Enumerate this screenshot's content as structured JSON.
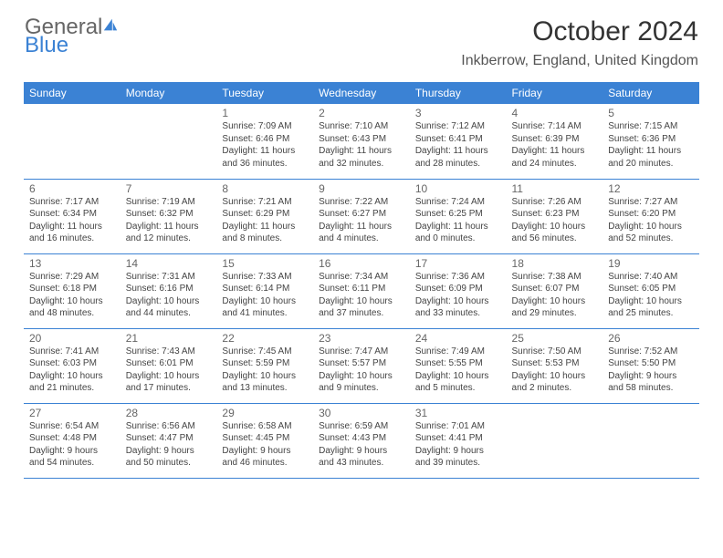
{
  "logo": {
    "part1": "General",
    "part2": "Blue"
  },
  "title": "October 2024",
  "location": "Inkberrow, England, United Kingdom",
  "colors": {
    "accent": "#3b82d4",
    "text": "#444",
    "muted": "#666"
  },
  "day_headers": [
    "Sunday",
    "Monday",
    "Tuesday",
    "Wednesday",
    "Thursday",
    "Friday",
    "Saturday"
  ],
  "weeks": [
    [
      null,
      null,
      {
        "n": "1",
        "sr": "Sunrise: 7:09 AM",
        "ss": "Sunset: 6:46 PM",
        "d1": "Daylight: 11 hours",
        "d2": "and 36 minutes."
      },
      {
        "n": "2",
        "sr": "Sunrise: 7:10 AM",
        "ss": "Sunset: 6:43 PM",
        "d1": "Daylight: 11 hours",
        "d2": "and 32 minutes."
      },
      {
        "n": "3",
        "sr": "Sunrise: 7:12 AM",
        "ss": "Sunset: 6:41 PM",
        "d1": "Daylight: 11 hours",
        "d2": "and 28 minutes."
      },
      {
        "n": "4",
        "sr": "Sunrise: 7:14 AM",
        "ss": "Sunset: 6:39 PM",
        "d1": "Daylight: 11 hours",
        "d2": "and 24 minutes."
      },
      {
        "n": "5",
        "sr": "Sunrise: 7:15 AM",
        "ss": "Sunset: 6:36 PM",
        "d1": "Daylight: 11 hours",
        "d2": "and 20 minutes."
      }
    ],
    [
      {
        "n": "6",
        "sr": "Sunrise: 7:17 AM",
        "ss": "Sunset: 6:34 PM",
        "d1": "Daylight: 11 hours",
        "d2": "and 16 minutes."
      },
      {
        "n": "7",
        "sr": "Sunrise: 7:19 AM",
        "ss": "Sunset: 6:32 PM",
        "d1": "Daylight: 11 hours",
        "d2": "and 12 minutes."
      },
      {
        "n": "8",
        "sr": "Sunrise: 7:21 AM",
        "ss": "Sunset: 6:29 PM",
        "d1": "Daylight: 11 hours",
        "d2": "and 8 minutes."
      },
      {
        "n": "9",
        "sr": "Sunrise: 7:22 AM",
        "ss": "Sunset: 6:27 PM",
        "d1": "Daylight: 11 hours",
        "d2": "and 4 minutes."
      },
      {
        "n": "10",
        "sr": "Sunrise: 7:24 AM",
        "ss": "Sunset: 6:25 PM",
        "d1": "Daylight: 11 hours",
        "d2": "and 0 minutes."
      },
      {
        "n": "11",
        "sr": "Sunrise: 7:26 AM",
        "ss": "Sunset: 6:23 PM",
        "d1": "Daylight: 10 hours",
        "d2": "and 56 minutes."
      },
      {
        "n": "12",
        "sr": "Sunrise: 7:27 AM",
        "ss": "Sunset: 6:20 PM",
        "d1": "Daylight: 10 hours",
        "d2": "and 52 minutes."
      }
    ],
    [
      {
        "n": "13",
        "sr": "Sunrise: 7:29 AM",
        "ss": "Sunset: 6:18 PM",
        "d1": "Daylight: 10 hours",
        "d2": "and 48 minutes."
      },
      {
        "n": "14",
        "sr": "Sunrise: 7:31 AM",
        "ss": "Sunset: 6:16 PM",
        "d1": "Daylight: 10 hours",
        "d2": "and 44 minutes."
      },
      {
        "n": "15",
        "sr": "Sunrise: 7:33 AM",
        "ss": "Sunset: 6:14 PM",
        "d1": "Daylight: 10 hours",
        "d2": "and 41 minutes."
      },
      {
        "n": "16",
        "sr": "Sunrise: 7:34 AM",
        "ss": "Sunset: 6:11 PM",
        "d1": "Daylight: 10 hours",
        "d2": "and 37 minutes."
      },
      {
        "n": "17",
        "sr": "Sunrise: 7:36 AM",
        "ss": "Sunset: 6:09 PM",
        "d1": "Daylight: 10 hours",
        "d2": "and 33 minutes."
      },
      {
        "n": "18",
        "sr": "Sunrise: 7:38 AM",
        "ss": "Sunset: 6:07 PM",
        "d1": "Daylight: 10 hours",
        "d2": "and 29 minutes."
      },
      {
        "n": "19",
        "sr": "Sunrise: 7:40 AM",
        "ss": "Sunset: 6:05 PM",
        "d1": "Daylight: 10 hours",
        "d2": "and 25 minutes."
      }
    ],
    [
      {
        "n": "20",
        "sr": "Sunrise: 7:41 AM",
        "ss": "Sunset: 6:03 PM",
        "d1": "Daylight: 10 hours",
        "d2": "and 21 minutes."
      },
      {
        "n": "21",
        "sr": "Sunrise: 7:43 AM",
        "ss": "Sunset: 6:01 PM",
        "d1": "Daylight: 10 hours",
        "d2": "and 17 minutes."
      },
      {
        "n": "22",
        "sr": "Sunrise: 7:45 AM",
        "ss": "Sunset: 5:59 PM",
        "d1": "Daylight: 10 hours",
        "d2": "and 13 minutes."
      },
      {
        "n": "23",
        "sr": "Sunrise: 7:47 AM",
        "ss": "Sunset: 5:57 PM",
        "d1": "Daylight: 10 hours",
        "d2": "and 9 minutes."
      },
      {
        "n": "24",
        "sr": "Sunrise: 7:49 AM",
        "ss": "Sunset: 5:55 PM",
        "d1": "Daylight: 10 hours",
        "d2": "and 5 minutes."
      },
      {
        "n": "25",
        "sr": "Sunrise: 7:50 AM",
        "ss": "Sunset: 5:53 PM",
        "d1": "Daylight: 10 hours",
        "d2": "and 2 minutes."
      },
      {
        "n": "26",
        "sr": "Sunrise: 7:52 AM",
        "ss": "Sunset: 5:50 PM",
        "d1": "Daylight: 9 hours",
        "d2": "and 58 minutes."
      }
    ],
    [
      {
        "n": "27",
        "sr": "Sunrise: 6:54 AM",
        "ss": "Sunset: 4:48 PM",
        "d1": "Daylight: 9 hours",
        "d2": "and 54 minutes."
      },
      {
        "n": "28",
        "sr": "Sunrise: 6:56 AM",
        "ss": "Sunset: 4:47 PM",
        "d1": "Daylight: 9 hours",
        "d2": "and 50 minutes."
      },
      {
        "n": "29",
        "sr": "Sunrise: 6:58 AM",
        "ss": "Sunset: 4:45 PM",
        "d1": "Daylight: 9 hours",
        "d2": "and 46 minutes."
      },
      {
        "n": "30",
        "sr": "Sunrise: 6:59 AM",
        "ss": "Sunset: 4:43 PM",
        "d1": "Daylight: 9 hours",
        "d2": "and 43 minutes."
      },
      {
        "n": "31",
        "sr": "Sunrise: 7:01 AM",
        "ss": "Sunset: 4:41 PM",
        "d1": "Daylight: 9 hours",
        "d2": "and 39 minutes."
      },
      null,
      null
    ]
  ]
}
